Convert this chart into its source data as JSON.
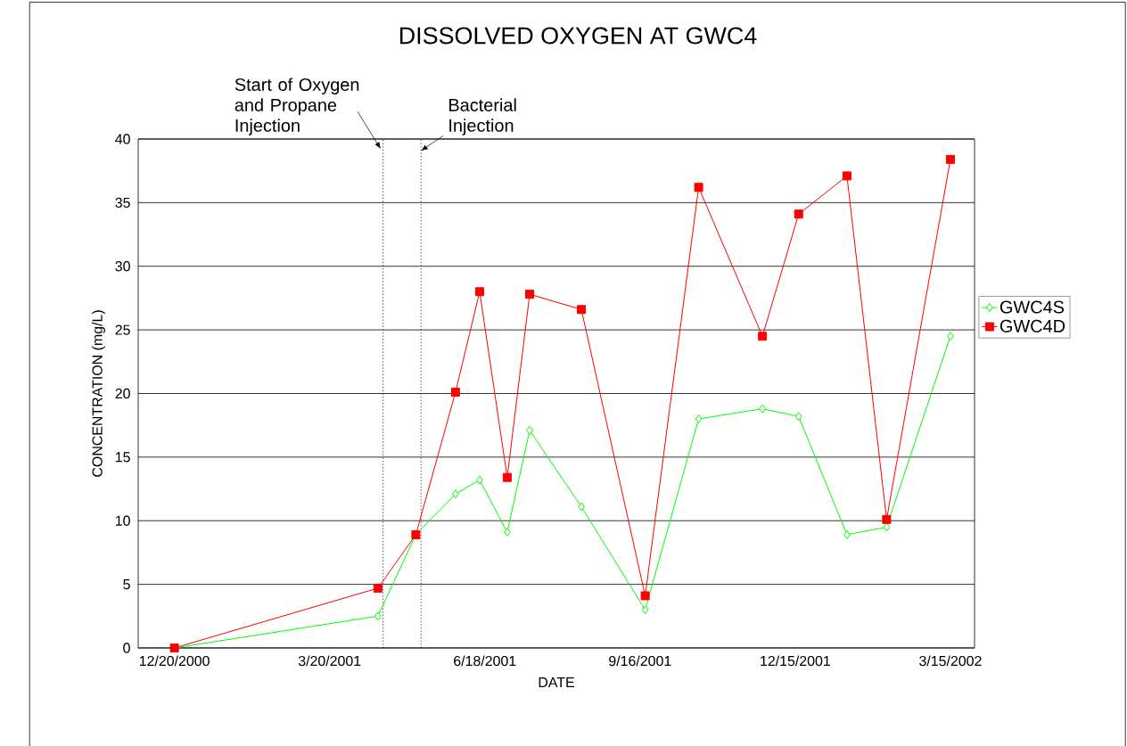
{
  "chart_data": {
    "type": "line",
    "title": "DISSOLVED OXYGEN AT GWC4",
    "xlabel": "DATE",
    "ylabel": "CONCENTRATION (mg/L)",
    "x": [
      "2000-12-20",
      "2001-04-17",
      "2001-05-09",
      "2001-06-01",
      "2001-06-15",
      "2001-07-01",
      "2001-07-14",
      "2001-08-13",
      "2001-09-19",
      "2001-10-20",
      "2001-11-26",
      "2001-12-17",
      "2002-01-14",
      "2002-02-06",
      "2002-03-15"
    ],
    "series": [
      {
        "name": "GWC4S",
        "color": "#00ff00",
        "marker": "diamond",
        "values": [
          0,
          2.5,
          8.9,
          12.1,
          13.2,
          9.1,
          17.1,
          11.1,
          3.0,
          18.0,
          18.8,
          18.2,
          8.9,
          9.5,
          24.5
        ]
      },
      {
        "name": "GWC4D",
        "color": "#ff0000",
        "marker": "square",
        "values": [
          0,
          4.7,
          8.9,
          20.1,
          28.0,
          13.4,
          27.8,
          26.6,
          4.1,
          36.2,
          24.5,
          34.1,
          37.1,
          10.1,
          38.4
        ]
      }
    ],
    "xlim": [
      "2000-11-29",
      "2002-03-29"
    ],
    "xticks": [
      {
        "value": "2000-12-20",
        "label": "12/20/2000"
      },
      {
        "value": "2001-03-20",
        "label": "3/20/2001"
      },
      {
        "value": "2001-06-18",
        "label": "6/18/2001"
      },
      {
        "value": "2001-09-16",
        "label": "9/16/2001"
      },
      {
        "value": "2001-12-15",
        "label": "12/15/2001"
      },
      {
        "value": "2002-03-15",
        "label": "3/15/2002"
      }
    ],
    "ylim": [
      0,
      40
    ],
    "yticks": [
      0,
      5,
      10,
      15,
      20,
      25,
      30,
      35,
      40
    ],
    "ref_lines": [
      {
        "axis": "x",
        "value": "2001-04-20",
        "label": "Start of Oxygen and Propane Injection",
        "color": "#000000",
        "line_style": "dotted"
      },
      {
        "axis": "x",
        "value": "2001-05-12",
        "label": "Bacterial Injection",
        "color": "#000000",
        "line_style": "dotted"
      }
    ],
    "grid": "y",
    "legend": "right"
  }
}
